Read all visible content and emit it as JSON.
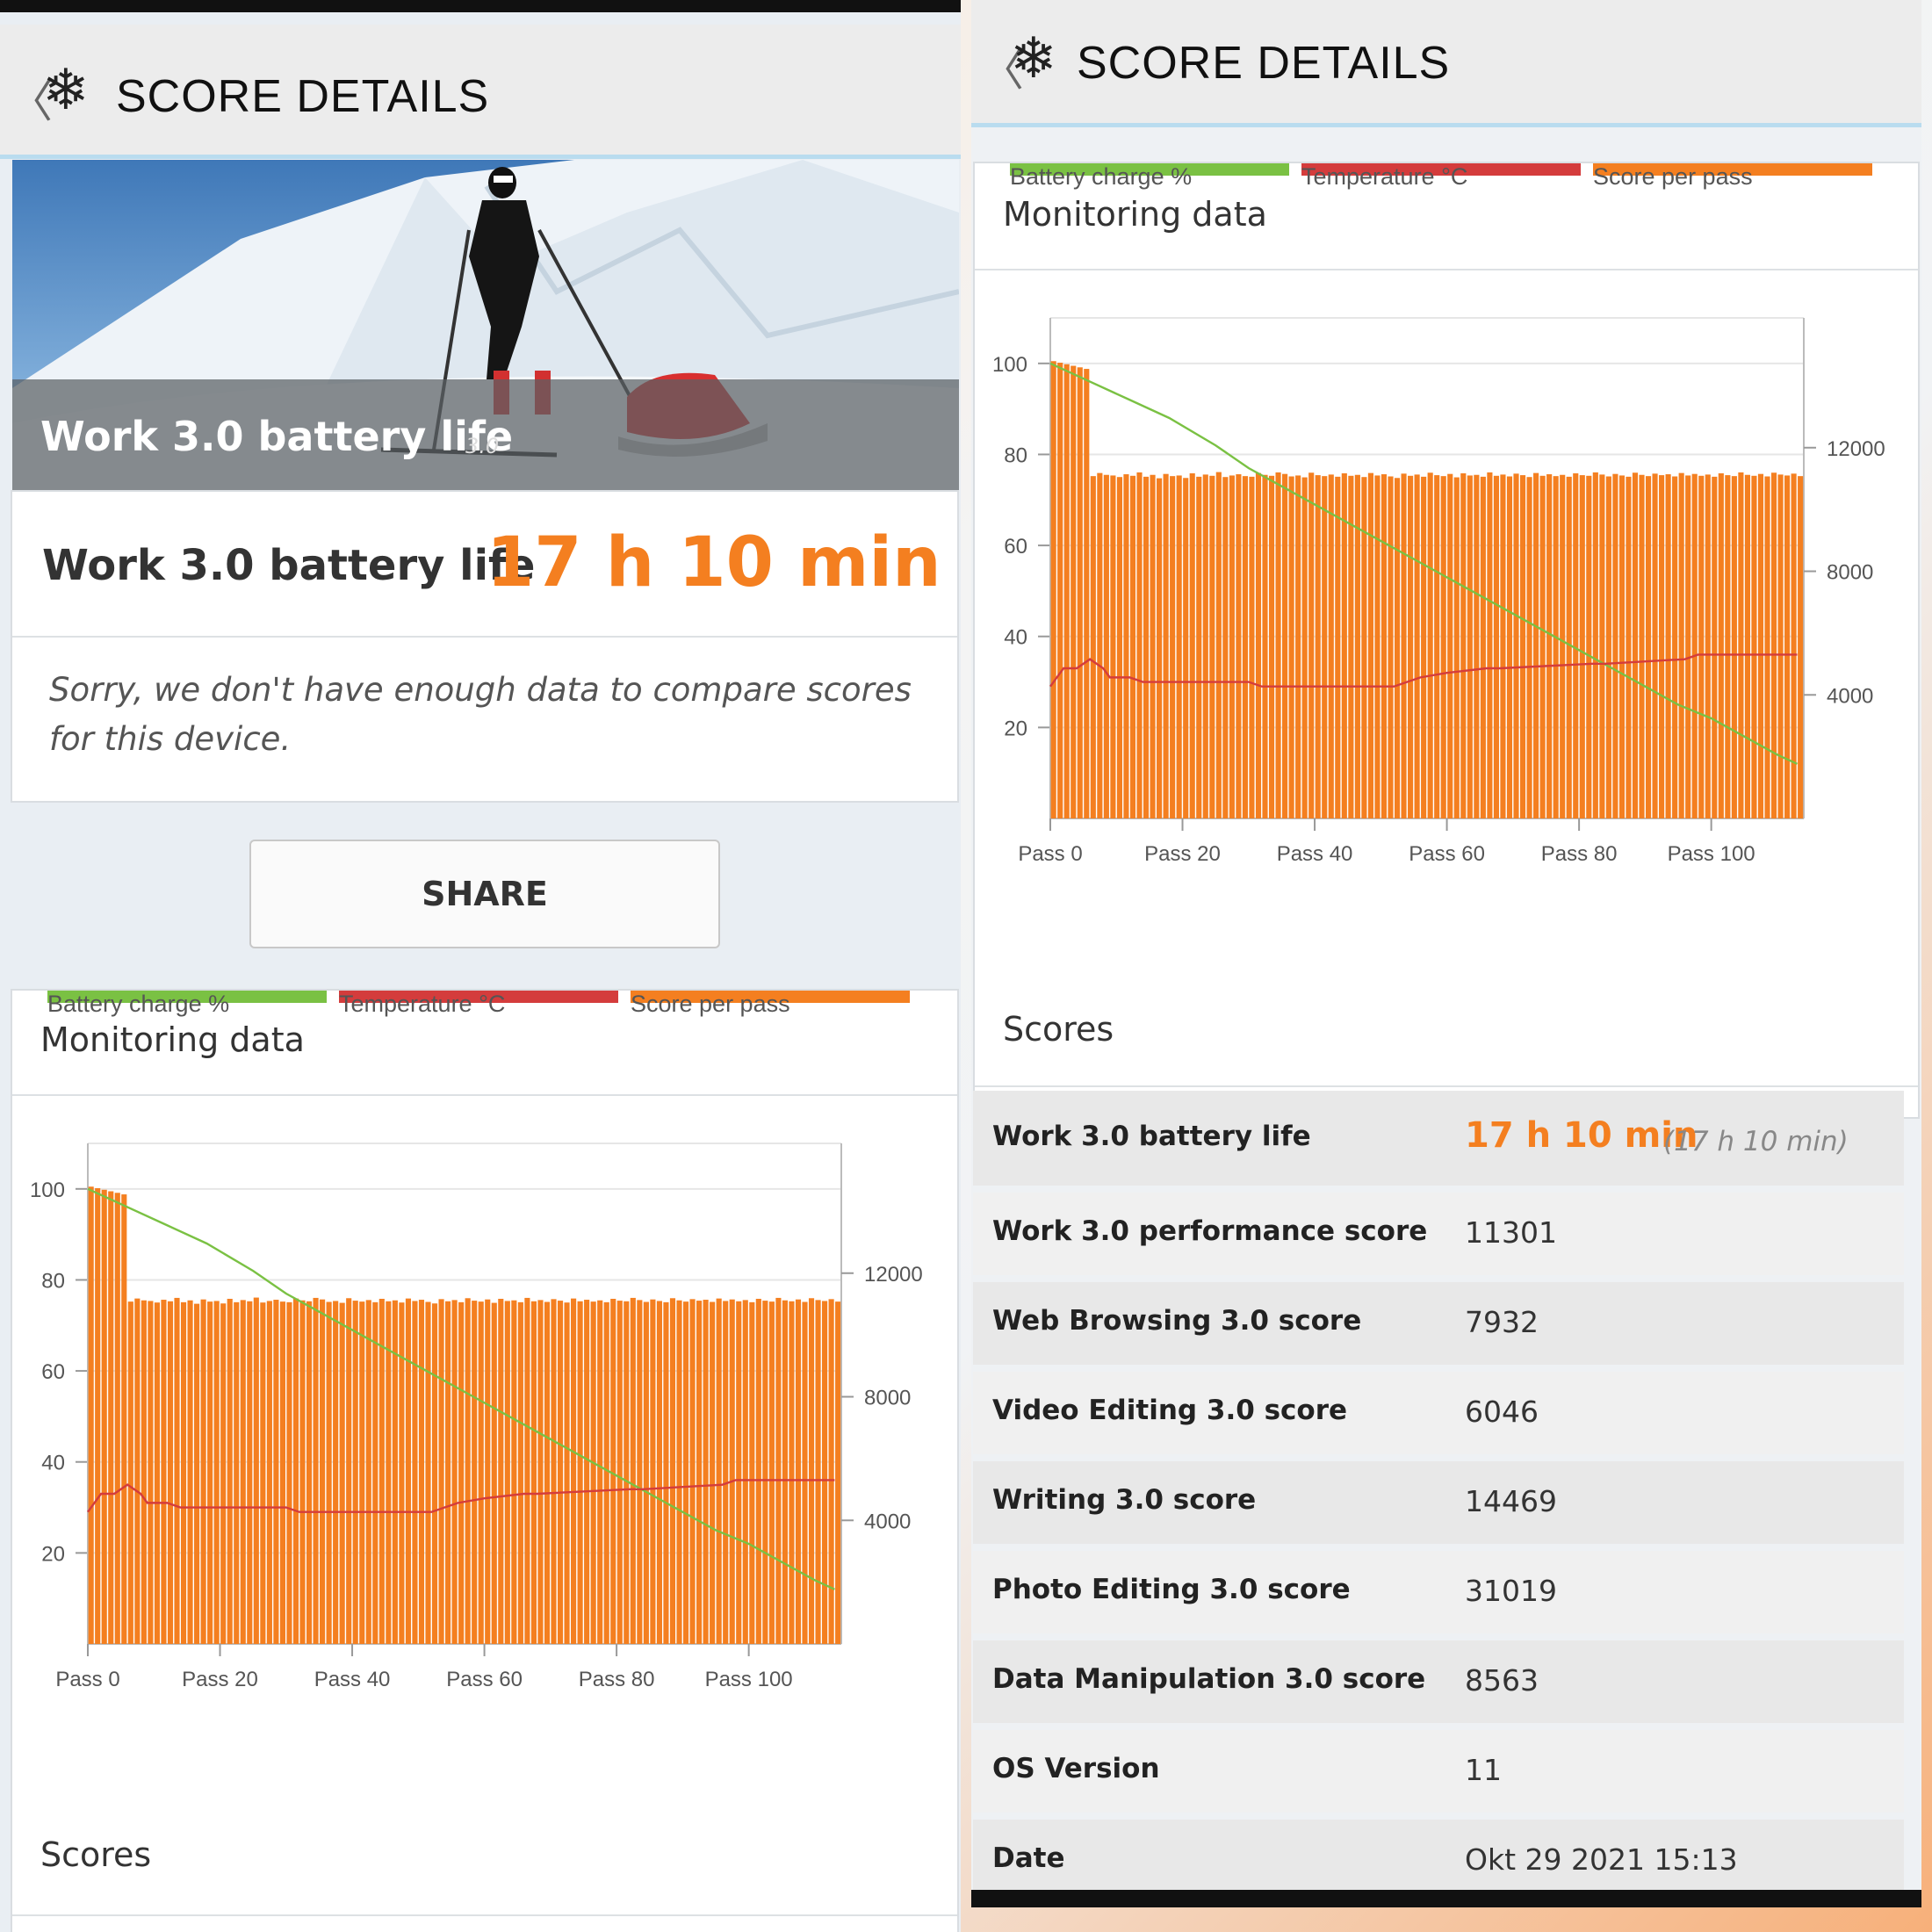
{
  "header": {
    "back_glyph": "〈",
    "icon": "snowflake-icon",
    "title": "SCORE DETAILS"
  },
  "hero": {
    "title": "Work 3.0 battery life",
    "version": "3.0"
  },
  "result": {
    "label": "Work 3.0 battery life",
    "value": "17 h 10 min"
  },
  "comparison_note": "Sorry, we don't have enough data to compare scores for this device.",
  "share_label": "SHARE",
  "monitoring": {
    "title": "Monitoring data"
  },
  "scores_title": "Scores",
  "chart_data": {
    "type": "bar",
    "x_ticks": [
      "Pass 0",
      "Pass 20",
      "Pass 40",
      "Pass 60",
      "Pass 80",
      "Pass 100"
    ],
    "x_range": [
      0,
      114
    ],
    "y_left_ticks": [
      20,
      40,
      60,
      80,
      100
    ],
    "y_left_range": [
      0,
      110
    ],
    "y_right_ticks": [
      4000,
      8000,
      12000
    ],
    "y_right_range": [
      0,
      16200
    ],
    "series": [
      {
        "name": "Battery charge %",
        "color": "#7ac143",
        "axis": "left",
        "points": [
          [
            0,
            100
          ],
          [
            6,
            96
          ],
          [
            12,
            92
          ],
          [
            18,
            88
          ],
          [
            25,
            82
          ],
          [
            30,
            77
          ],
          [
            35,
            73
          ],
          [
            40,
            69
          ],
          [
            45,
            65
          ],
          [
            50,
            61
          ],
          [
            55,
            57
          ],
          [
            60,
            53
          ],
          [
            65,
            49
          ],
          [
            70,
            45
          ],
          [
            75,
            41
          ],
          [
            80,
            37
          ],
          [
            85,
            33
          ],
          [
            90,
            29
          ],
          [
            95,
            25
          ],
          [
            100,
            22
          ],
          [
            105,
            18
          ],
          [
            110,
            14
          ],
          [
            113,
            12
          ]
        ]
      },
      {
        "name": "Temperature °C",
        "color": "#d43c3c",
        "axis": "left",
        "points": [
          [
            0,
            29
          ],
          [
            2,
            33
          ],
          [
            4,
            33
          ],
          [
            6,
            35
          ],
          [
            8,
            33
          ],
          [
            9,
            31
          ],
          [
            12,
            31
          ],
          [
            14,
            30
          ],
          [
            30,
            30
          ],
          [
            32,
            29
          ],
          [
            52,
            29
          ],
          [
            54,
            30
          ],
          [
            56,
            31
          ],
          [
            60,
            32
          ],
          [
            66,
            33
          ],
          [
            68,
            33
          ],
          [
            82,
            34
          ],
          [
            84,
            34
          ],
          [
            96,
            35
          ],
          [
            98,
            36
          ],
          [
            113,
            36
          ]
        ]
      },
      {
        "name": "Score per pass",
        "color": "#f47f20",
        "axis": "right",
        "values": [
          14800,
          14750,
          14700,
          14650,
          14600,
          14550,
          11080,
          11180,
          11120,
          11100,
          11050,
          11140,
          11090,
          11200,
          11060,
          11120,
          11010,
          11150,
          11080,
          11100,
          11020,
          11170,
          11060,
          11130,
          11090,
          11210,
          11050,
          11100,
          11140,
          11080,
          11060,
          11180,
          11120,
          11090,
          11200,
          11150,
          11070,
          11100,
          11040,
          11190,
          11110,
          11080,
          11130,
          11060,
          11170,
          11090,
          11120,
          11050,
          11180,
          11100,
          11140,
          11070,
          11020,
          11160,
          11090,
          11130,
          11060,
          11190,
          11110,
          11080,
          11150,
          11040,
          11170,
          11100,
          11120,
          11060,
          11200,
          11090,
          11130,
          11070,
          11160,
          11110,
          11050,
          11180,
          11090,
          11140,
          11080,
          11120,
          11060,
          11170,
          11110,
          11090,
          11200,
          11130,
          11070,
          11150,
          11100,
          11060,
          11190,
          11120,
          11080,
          11160,
          11110,
          11140,
          11070,
          11180,
          11100,
          11150,
          11090,
          11130,
          11060,
          11170,
          11110,
          11080,
          11200,
          11120,
          11090,
          11150,
          11070,
          11190,
          11130,
          11100,
          11160,
          11080
        ]
      }
    ]
  },
  "scores": [
    {
      "label": "Work 3.0 battery life",
      "value": "17 h 10 min",
      "secondary": "(17 h 10 min)"
    },
    {
      "label": "Work 3.0 performance score",
      "value": "11301"
    },
    {
      "label": "Web Browsing 3.0 score",
      "value": "7932"
    },
    {
      "label": "Video Editing 3.0 score",
      "value": "6046"
    },
    {
      "label": "Writing 3.0 score",
      "value": "14469"
    },
    {
      "label": "Photo Editing 3.0 score",
      "value": "31019"
    },
    {
      "label": "Data Manipulation 3.0 score",
      "value": "8563"
    },
    {
      "label": "OS Version",
      "value": "11"
    },
    {
      "label": "Date",
      "value": "Okt 29 2021 15:13"
    }
  ],
  "colors": {
    "accent": "#f47f20",
    "battery": "#7ac143",
    "temperature": "#d43c3c",
    "score": "#f47f20"
  }
}
